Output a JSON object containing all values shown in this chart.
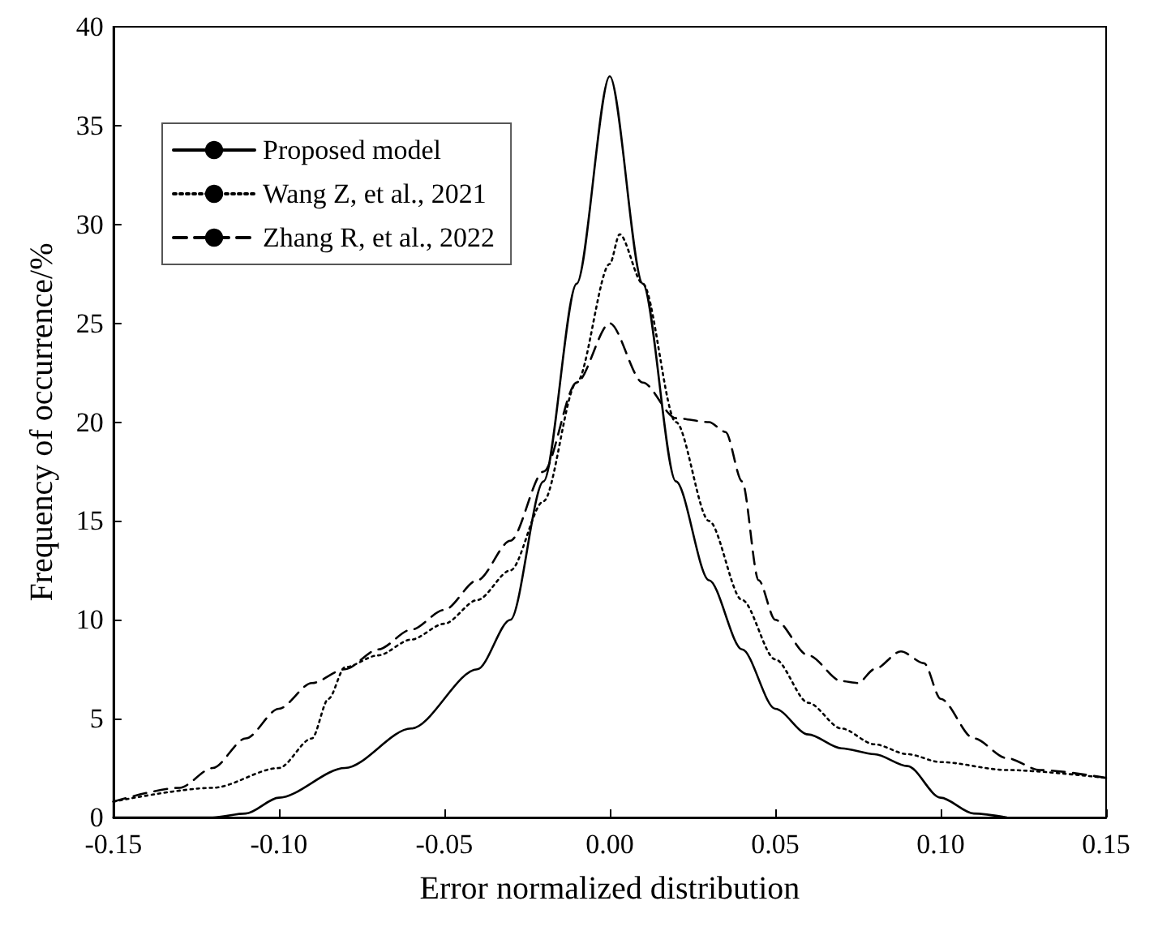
{
  "chart_data": {
    "type": "line",
    "xlabel": "Error normalized distribution",
    "ylabel": "Frequency of occurrence/%",
    "xlim": [
      -0.15,
      0.15
    ],
    "xticks": [
      -0.15,
      {
        "value": -0.1,
        "label": "-0.10"
      },
      -0.05,
      {
        "value": 0,
        "label": "0.00"
      },
      0.05,
      {
        "value": 0.1,
        "label": "0.10"
      },
      0.15
    ],
    "ylim": [
      0,
      40
    ],
    "yticks": [
      0,
      5,
      10,
      15,
      20,
      25,
      30,
      35,
      40
    ],
    "grid": false,
    "legend": "top left",
    "marker": "none",
    "series": [
      {
        "name": "Proposed model",
        "color": "#000000",
        "line_style": "solid",
        "x": [
          -0.15,
          -0.12,
          -0.11,
          -0.1,
          -0.08,
          -0.06,
          -0.04,
          -0.03,
          -0.02,
          -0.01,
          0,
          0.01,
          0.02,
          0.03,
          0.04,
          0.05,
          0.06,
          0.07,
          0.08,
          0.09,
          0.1,
          0.11,
          0.12
        ],
        "values": [
          0,
          0,
          0.2,
          1,
          2.5,
          4.5,
          7.5,
          10,
          17,
          27,
          37.5,
          27,
          17,
          12,
          8.5,
          5.5,
          4.2,
          3.5,
          3.2,
          2.6,
          1,
          0.2,
          0
        ]
      },
      {
        "name": "Wang Z, et al., 2021",
        "color": "#000000",
        "line_style": "dotted",
        "x": [
          -0.15,
          -0.12,
          -0.1,
          -0.09,
          -0.085,
          -0.08,
          -0.07,
          -0.06,
          -0.05,
          -0.04,
          -0.03,
          -0.02,
          -0.01,
          0,
          0.003,
          0.01,
          0.02,
          0.03,
          0.04,
          0.05,
          0.06,
          0.07,
          0.08,
          0.09,
          0.1,
          0.12,
          0.15
        ],
        "values": [
          0.8,
          1.5,
          2.5,
          4,
          6,
          7.6,
          8.2,
          9,
          9.8,
          11,
          12.5,
          16,
          22,
          28,
          29.5,
          27,
          20,
          15,
          11,
          8,
          5.8,
          4.5,
          3.7,
          3.2,
          2.8,
          2.4,
          2
        ]
      },
      {
        "name": "Zhang R, et al., 2022",
        "color": "#000000",
        "line_style": "dashed",
        "x": [
          -0.15,
          -0.13,
          -0.12,
          -0.11,
          -0.1,
          -0.09,
          -0.08,
          -0.07,
          -0.06,
          -0.05,
          -0.04,
          -0.03,
          -0.02,
          -0.01,
          0,
          0.01,
          0.02,
          0.03,
          0.035,
          0.04,
          0.045,
          0.05,
          0.06,
          0.07,
          0.075,
          0.08,
          0.088,
          0.095,
          0.1,
          0.11,
          0.12,
          0.13,
          0.15
        ],
        "values": [
          0.8,
          1.5,
          2.5,
          4,
          5.5,
          6.8,
          7.5,
          8.5,
          9.5,
          10.5,
          12,
          14,
          17.5,
          22,
          25,
          22,
          20.2,
          20,
          19.5,
          17,
          12,
          10,
          8.2,
          6.9,
          6.8,
          7.5,
          8.4,
          7.8,
          6,
          4,
          3,
          2.4,
          2
        ]
      }
    ]
  }
}
